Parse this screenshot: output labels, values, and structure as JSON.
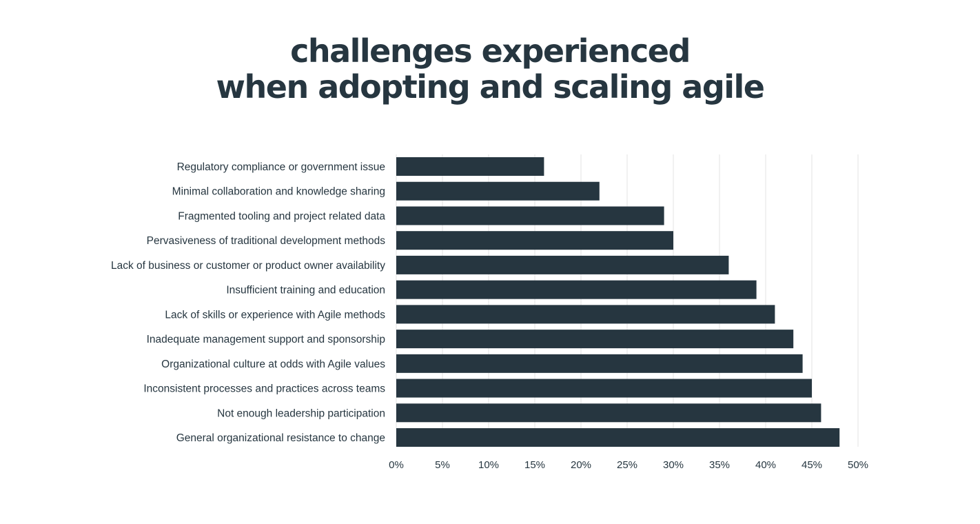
{
  "chart_data": {
    "type": "bar",
    "orientation": "horizontal",
    "title_lines": [
      "challenges experienced",
      "when adopting and scaling agile"
    ],
    "categories": [
      "Regulatory compliance or government issue",
      "Minimal collaboration and knowledge sharing",
      "Fragmented tooling and project related data",
      "Pervasiveness of traditional development methods",
      "Lack of business or customer or product owner availability",
      "Insufficient training and education",
      "Lack of skills or experience with Agile methods",
      "Inadequate management support and sponsorship",
      "Organizational culture at odds with Agile values",
      "Inconsistent processes and practices across teams",
      "Not enough leadership participation",
      "General organizational resistance to change"
    ],
    "values": [
      16,
      22,
      29,
      30,
      36,
      39,
      41,
      43,
      44,
      45,
      46,
      48
    ],
    "xlim": [
      0,
      50
    ],
    "x_ticks": [
      0,
      5,
      10,
      15,
      20,
      25,
      30,
      35,
      40,
      45,
      50
    ],
    "x_tick_labels": [
      "0%",
      "5%",
      "10%",
      "15%",
      "20%",
      "25%",
      "30%",
      "35%",
      "40%",
      "45%",
      "50%"
    ],
    "grid": "vertical",
    "bar_color": "#263640",
    "grid_color": "#e3e3e3",
    "text_color": "#263640"
  }
}
